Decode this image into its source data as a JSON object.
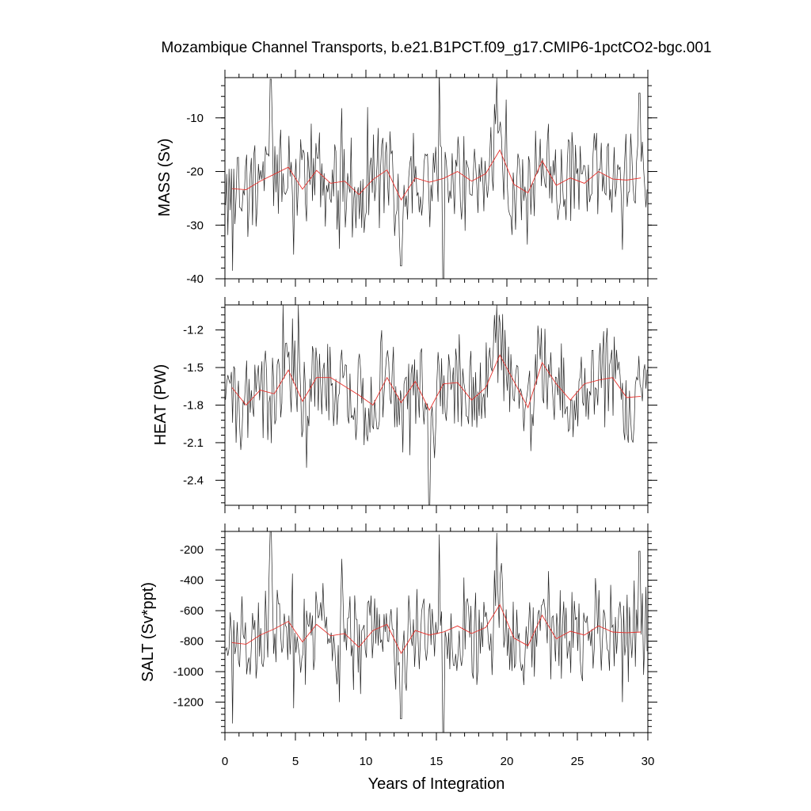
{
  "chart_data": {
    "type": "line",
    "title": "Mozambique Channel Transports, b.e21.B1PCT.f09_g17.CMIP6-1pctCO2-bgc.001",
    "xlabel": "Years of Integration",
    "xlim": [
      0,
      30
    ],
    "xticks": [
      "0",
      "5",
      "10",
      "15",
      "20",
      "25",
      "30"
    ],
    "series_colors": {
      "monthly": "#222222",
      "annual_mean": "#e8312c"
    },
    "panels": [
      {
        "id": "mass",
        "ylabel": "MASS (Sv)",
        "ylim": [
          -40,
          -2.5
        ],
        "yticks": [
          "-10",
          "-20",
          "-30",
          "-40"
        ],
        "ytick_values": [
          -10,
          -20,
          -30,
          -40
        ],
        "annual_mean": {
          "x": [
            0.5,
            1.5,
            2.5,
            3.5,
            4.5,
            5.5,
            6.5,
            7.5,
            8.5,
            9.5,
            10.5,
            11.5,
            12.5,
            13.5,
            14.5,
            15.5,
            16.5,
            17.5,
            18.5,
            19.5,
            20.5,
            21.5,
            22.5,
            23.5,
            24.5,
            25.5,
            26.5,
            27.5,
            28.5,
            29.5
          ],
          "y": [
            -23.2,
            -23.4,
            -21.8,
            -20.5,
            -19.2,
            -23.3,
            -19.8,
            -22.2,
            -21.8,
            -24.3,
            -21.5,
            -19.7,
            -25.3,
            -21.2,
            -22.0,
            -21.3,
            -20.0,
            -21.8,
            -20.4,
            -16.0,
            -22.4,
            -24.0,
            -18.0,
            -22.6,
            -21.2,
            -22.2,
            -20.0,
            -21.4,
            -21.6,
            -21.2
          ]
        },
        "monthly": {
          "x0": 0.0417,
          "dx": 0.0833,
          "peaks": [
            [
              3.25,
              -2.8
            ],
            [
              15.2,
              -0.5
            ],
            [
              19.3,
              -2.6
            ],
            [
              29.4,
              -5.4
            ],
            [
              8.3,
              -8.2
            ],
            [
              10.1,
              -8.0
            ]
          ],
          "troughs": [
            [
              0.55,
              -38.5
            ],
            [
              12.5,
              -37.6
            ],
            [
              15.5,
              -40.0
            ],
            [
              8.1,
              -34.4
            ],
            [
              28.2,
              -34.6
            ],
            [
              4.9,
              -35.5
            ]
          ]
        }
      },
      {
        "id": "heat",
        "ylabel": "HEAT (PW)",
        "ylim": [
          -2.6,
          -1.0
        ],
        "yticks": [
          "-1.2",
          "-1.5",
          "-1.8",
          "-2.1",
          "-2.4"
        ],
        "ytick_values": [
          -1.2,
          -1.5,
          -1.8,
          -2.1,
          -2.4
        ],
        "annual_mean": {
          "x": [
            0.5,
            1.5,
            2.5,
            3.5,
            4.5,
            5.5,
            6.5,
            7.5,
            8.5,
            9.5,
            10.5,
            11.5,
            12.5,
            13.5,
            14.5,
            15.5,
            16.5,
            17.5,
            18.5,
            19.5,
            20.5,
            21.5,
            22.5,
            23.5,
            24.5,
            25.5,
            26.5,
            27.5,
            28.5,
            29.5
          ],
          "y": [
            -1.66,
            -1.8,
            -1.68,
            -1.71,
            -1.52,
            -1.77,
            -1.58,
            -1.58,
            -1.65,
            -1.72,
            -1.8,
            -1.58,
            -1.78,
            -1.61,
            -1.84,
            -1.63,
            -1.62,
            -1.76,
            -1.66,
            -1.4,
            -1.61,
            -1.82,
            -1.46,
            -1.63,
            -1.76,
            -1.63,
            -1.6,
            -1.58,
            -1.74,
            -1.73
          ]
        },
        "monthly": {
          "x0": 0.0417,
          "dx": 0.0833,
          "peaks": [
            [
              4.1,
              -1.0
            ],
            [
              5.2,
              -1.0
            ],
            [
              19.3,
              -1.0
            ],
            [
              19.9,
              -1.2
            ],
            [
              22.3,
              -1.3
            ]
          ],
          "troughs": [
            [
              14.5,
              -2.6
            ],
            [
              5.8,
              -2.3
            ],
            [
              0.8,
              -2.1
            ],
            [
              13.1,
              -2.2
            ],
            [
              28.6,
              -2.1
            ]
          ]
        }
      },
      {
        "id": "salt",
        "ylabel": "SALT (Sv*ppt)",
        "ylim": [
          -1400,
          -80
        ],
        "yticks": [
          "-200",
          "-400",
          "-600",
          "-800",
          "-1000",
          "-1200"
        ],
        "ytick_values": [
          -200,
          -400,
          -600,
          -800,
          -1000,
          -1200
        ],
        "annual_mean": {
          "x": [
            0.5,
            1.5,
            2.5,
            3.5,
            4.5,
            5.5,
            6.5,
            7.5,
            8.5,
            9.5,
            10.5,
            11.5,
            12.5,
            13.5,
            14.5,
            15.5,
            16.5,
            17.5,
            18.5,
            19.5,
            20.5,
            21.5,
            22.5,
            23.5,
            24.5,
            25.5,
            26.5,
            27.5,
            28.5,
            29.5
          ],
          "y": [
            -810,
            -820,
            -760,
            -720,
            -670,
            -805,
            -690,
            -765,
            -750,
            -840,
            -730,
            -690,
            -880,
            -730,
            -760,
            -740,
            -700,
            -750,
            -710,
            -560,
            -780,
            -830,
            -630,
            -785,
            -735,
            -760,
            -700,
            -740,
            -745,
            -740
          ]
        },
        "monthly": {
          "x0": 0.0417,
          "dx": 0.0833,
          "peaks": [
            [
              3.25,
              -80
            ],
            [
              15.2,
              -100
            ],
            [
              19.3,
              -90
            ],
            [
              29.4,
              -210
            ],
            [
              8.3,
              -260
            ]
          ],
          "troughs": [
            [
              0.55,
              -1340
            ],
            [
              12.5,
              -1310
            ],
            [
              15.5,
              -1400
            ],
            [
              8.1,
              -1200
            ],
            [
              28.2,
              -1200
            ],
            [
              4.9,
              -1240
            ]
          ]
        }
      }
    ]
  }
}
